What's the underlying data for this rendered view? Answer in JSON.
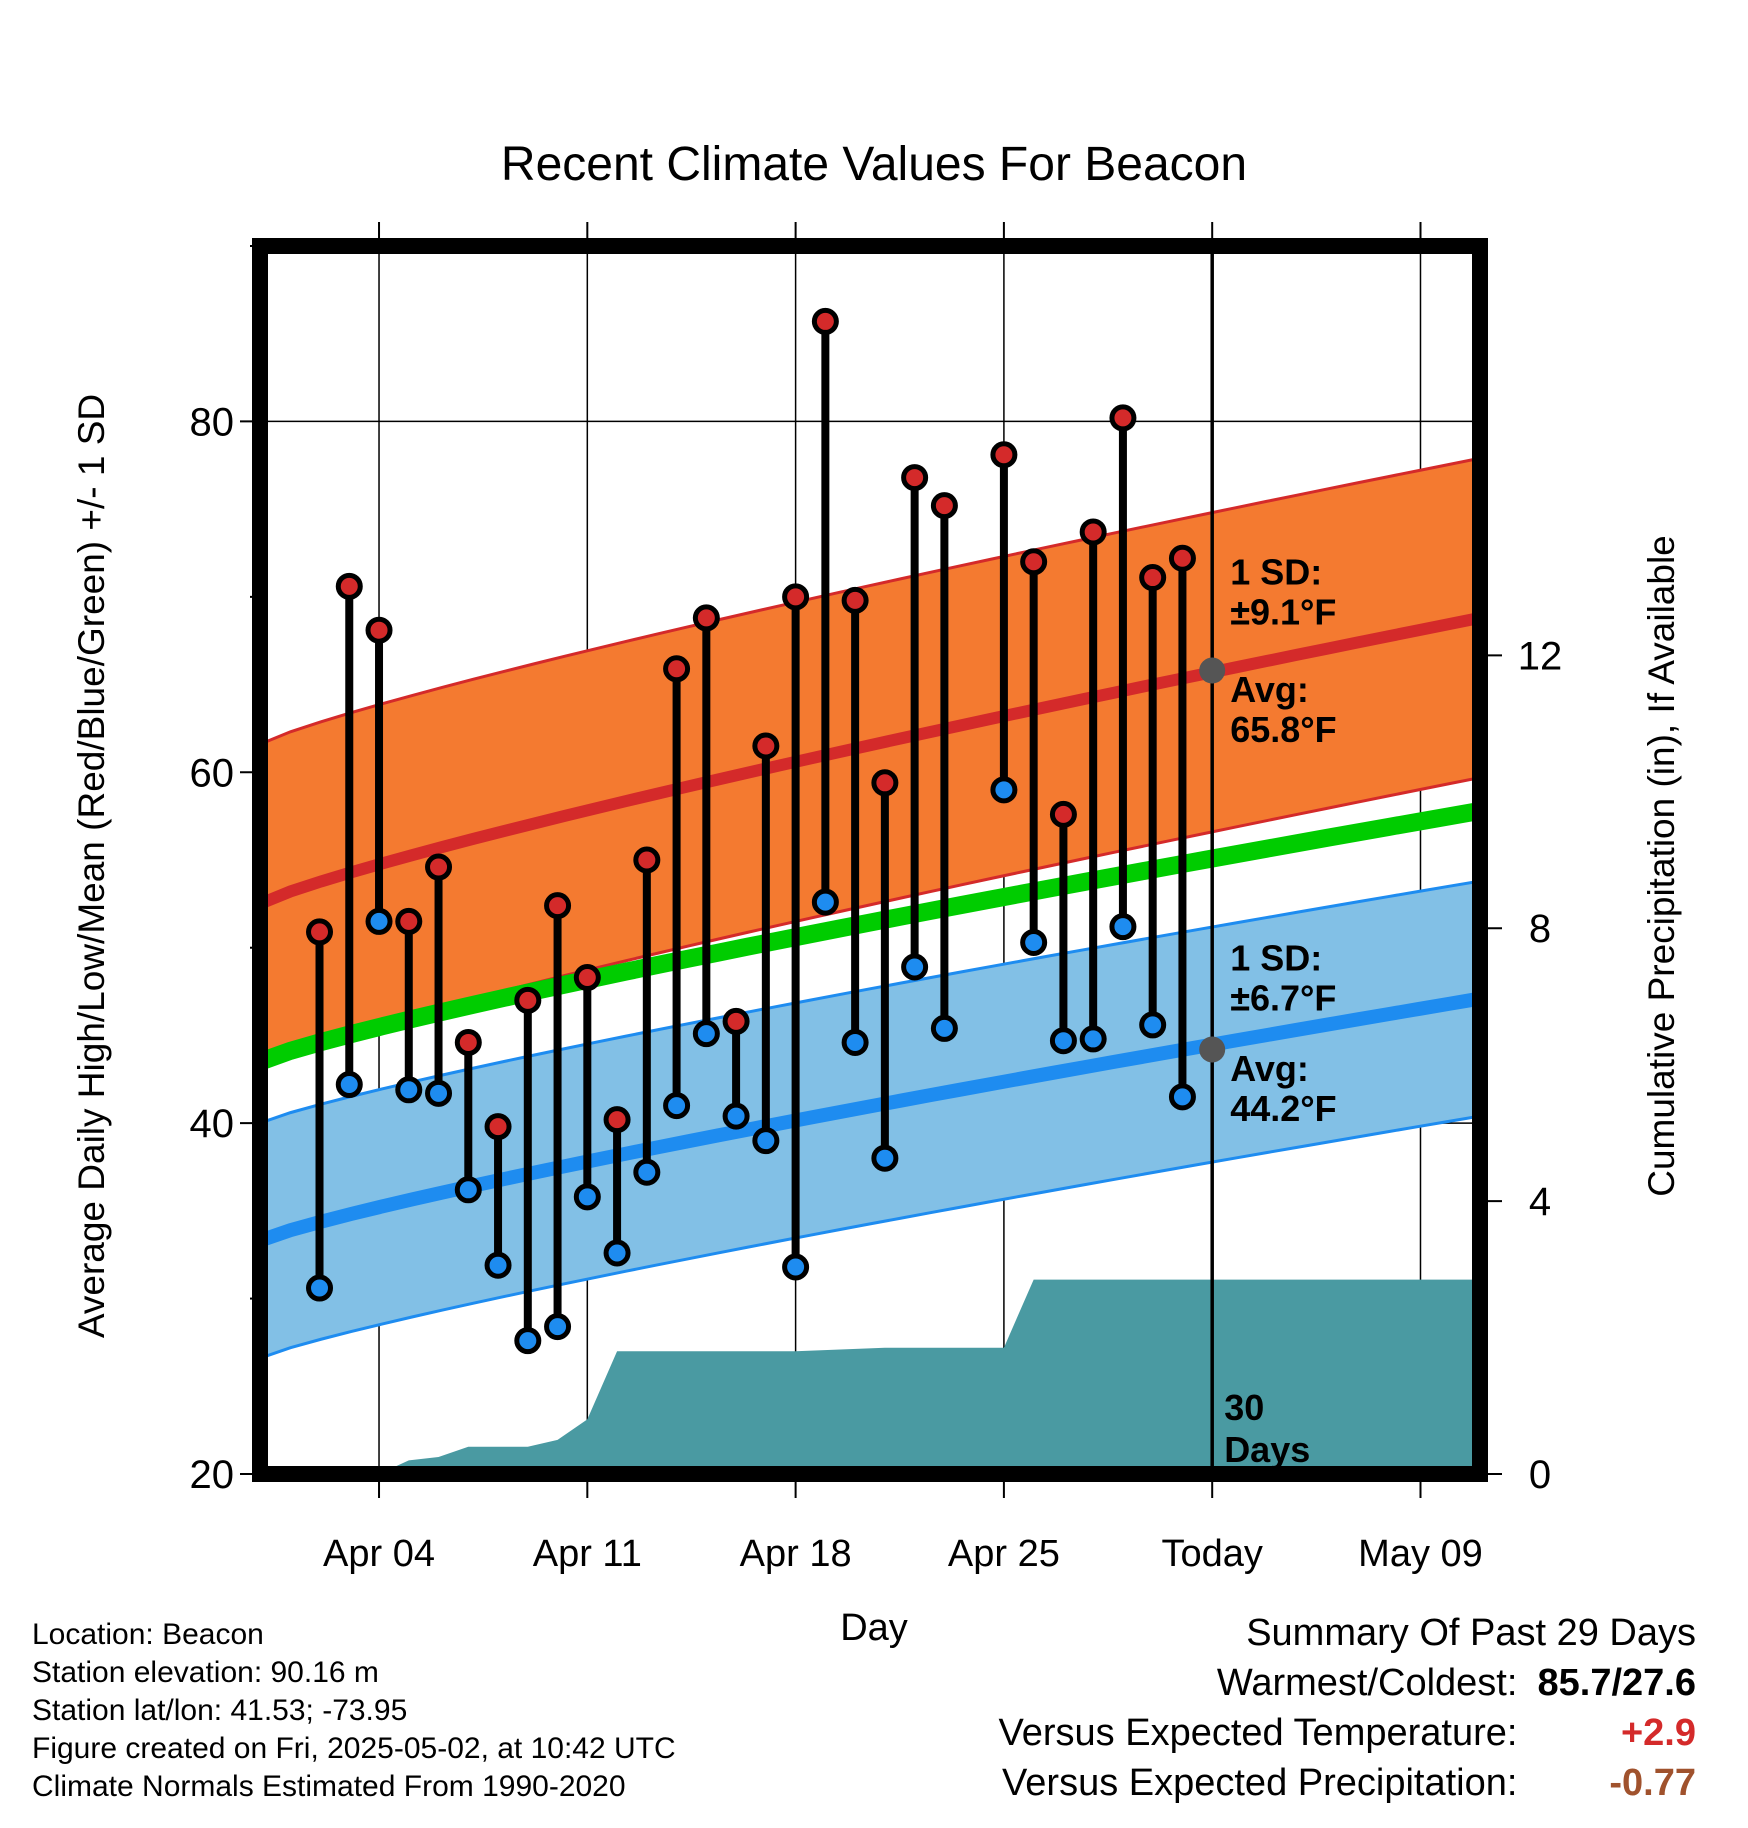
{
  "chart_data": {
    "type": "line",
    "title": "Recent Climate Values For Beacon",
    "xlabel": "Day",
    "ylabel": "Average Daily High/Low/Mean (Red/Blue/Green) +/- 1 SD",
    "y2label": "Cumulative Precipitation (in), If Available",
    "ylim": [
      20,
      90
    ],
    "y2lim": [
      0,
      18
    ],
    "yticks": [
      20,
      40,
      60,
      80
    ],
    "y2ticks": [
      0,
      4,
      8,
      12
    ],
    "xlim": [
      "2025-03-31",
      "2025-05-11"
    ],
    "xticks": [
      {
        "date": "2025-04-04",
        "label": "Apr 04"
      },
      {
        "date": "2025-04-11",
        "label": "Apr 11"
      },
      {
        "date": "2025-04-18",
        "label": "Apr 18"
      },
      {
        "date": "2025-04-25",
        "label": "Apr 25"
      },
      {
        "date": "2025-05-02",
        "label": "Today"
      },
      {
        "date": "2025-05-09",
        "label": "May 09"
      }
    ],
    "grid": true,
    "today": "2025-05-02",
    "today_label": [
      "30",
      "Days"
    ],
    "normals": {
      "high_avg": {
        "start": 52.5,
        "end": 68.8
      },
      "high_sd": 9.1,
      "mean_avg": {
        "start": 43.5,
        "end": 57.8
      },
      "low_avg": {
        "start": 33.3,
        "end": 47.1
      },
      "low_sd": 6.7,
      "colors": {
        "high_band": "#f47a30",
        "high_line": "#d42a2a",
        "mean_line": "#00cc00",
        "low_band": "#82c0e6",
        "low_line": "#1e8cf0"
      }
    },
    "annotations": {
      "high_sd": [
        "1 SD:",
        "±9.1°F"
      ],
      "high_avg": [
        "Avg:",
        "65.8°F"
      ],
      "low_sd": [
        "1 SD:",
        "±6.7°F"
      ],
      "low_avg": [
        "Avg:",
        "44.2°F"
      ],
      "high_avg_value": 65.8,
      "low_avg_value": 44.2,
      "color": "#555555"
    },
    "daily": [
      {
        "date": "2025-04-02",
        "high": 50.9,
        "low": 30.6
      },
      {
        "date": "2025-04-03",
        "high": 70.6,
        "low": 42.2
      },
      {
        "date": "2025-04-04",
        "high": 68.1,
        "low": 51.5
      },
      {
        "date": "2025-04-05",
        "high": 51.5,
        "low": 41.9
      },
      {
        "date": "2025-04-06",
        "high": 54.6,
        "low": 41.7
      },
      {
        "date": "2025-04-07",
        "high": 44.6,
        "low": 36.2
      },
      {
        "date": "2025-04-08",
        "high": 39.8,
        "low": 31.9
      },
      {
        "date": "2025-04-09",
        "high": 47.0,
        "low": 27.6
      },
      {
        "date": "2025-04-10",
        "high": 52.4,
        "low": 28.4
      },
      {
        "date": "2025-04-11",
        "high": 48.3,
        "low": 35.8
      },
      {
        "date": "2025-04-12",
        "high": 40.2,
        "low": 32.6
      },
      {
        "date": "2025-04-13",
        "high": 55.0,
        "low": 37.2
      },
      {
        "date": "2025-04-14",
        "high": 65.9,
        "low": 41.0
      },
      {
        "date": "2025-04-15",
        "high": 68.8,
        "low": 45.1
      },
      {
        "date": "2025-04-16",
        "high": 45.8,
        "low": 40.4
      },
      {
        "date": "2025-04-17",
        "high": 61.5,
        "low": 39.0
      },
      {
        "date": "2025-04-18",
        "high": 70.0,
        "low": 31.8
      },
      {
        "date": "2025-04-19",
        "high": 85.7,
        "low": 52.6
      },
      {
        "date": "2025-04-20",
        "high": 69.8,
        "low": 44.6
      },
      {
        "date": "2025-04-21",
        "high": 59.4,
        "low": 38.0
      },
      {
        "date": "2025-04-22",
        "high": 76.8,
        "low": 48.9
      },
      {
        "date": "2025-04-23",
        "high": 75.2,
        "low": 45.4
      },
      {
        "date": "2025-04-25",
        "high": 78.1,
        "low": 59.0
      },
      {
        "date": "2025-04-26",
        "high": 72.0,
        "low": 50.3
      },
      {
        "date": "2025-04-27",
        "high": 57.6,
        "low": 44.7
      },
      {
        "date": "2025-04-28",
        "high": 73.7,
        "low": 44.8
      },
      {
        "date": "2025-04-29",
        "high": 80.2,
        "low": 51.2
      },
      {
        "date": "2025-04-30",
        "high": 71.1,
        "low": 45.6
      },
      {
        "date": "2025-05-01",
        "high": 72.2,
        "low": 41.5
      }
    ],
    "precip_cumulative": [
      {
        "date": "2025-03-31",
        "value": 0.0
      },
      {
        "date": "2025-04-04",
        "value": 0.0
      },
      {
        "date": "2025-04-05",
        "value": 0.2
      },
      {
        "date": "2025-04-06",
        "value": 0.25
      },
      {
        "date": "2025-04-07",
        "value": 0.4
      },
      {
        "date": "2025-04-09",
        "value": 0.4
      },
      {
        "date": "2025-04-10",
        "value": 0.5
      },
      {
        "date": "2025-04-11",
        "value": 0.8
      },
      {
        "date": "2025-04-12",
        "value": 1.8
      },
      {
        "date": "2025-04-18",
        "value": 1.8
      },
      {
        "date": "2025-04-21",
        "value": 1.85
      },
      {
        "date": "2025-04-25",
        "value": 1.85
      },
      {
        "date": "2025-04-26",
        "value": 2.85
      },
      {
        "date": "2025-05-11",
        "value": 2.85
      }
    ],
    "precip_color": "#4a9aa2"
  },
  "station_info": {
    "location": "Location: Beacon",
    "elevation": "Station elevation: 90.16 m",
    "latlon": "Station lat/lon: 41.53; -73.95",
    "created": "Figure created on Fri, 2025-05-02, at 10:42 UTC",
    "normals": "Climate Normals Estimated From 1990-2020"
  },
  "summary": {
    "title": "Summary Of Past 29 Days",
    "warmest_coldest_label": "Warmest/Coldest:",
    "warmest_coldest_value": "85.7/27.6",
    "temp_label": "Versus Expected Temperature:",
    "temp_value": "+2.9",
    "temp_color": "#d42a2a",
    "precip_label": "Versus Expected Precipitation:",
    "precip_value": "-0.77",
    "precip_color": "#a0522d"
  }
}
